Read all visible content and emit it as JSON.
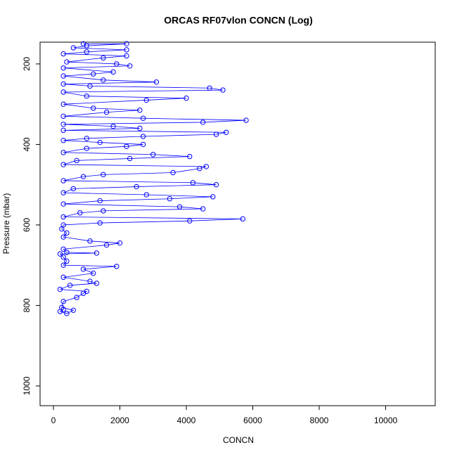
{
  "chart_data": {
    "type": "scatter",
    "title": "ORCAS RF07vlon CONCN (Log)",
    "x_label": "CONCN",
    "y_label": "Pressure (mbar)",
    "xlim": [
      -402,
      11492
    ],
    "ylim": [
      1049,
      146
    ],
    "xticks": [
      0,
      2000,
      4000,
      6000,
      8000,
      10000
    ],
    "yticks": [
      200,
      400,
      600,
      800,
      1000
    ],
    "color": "#0000ff",
    "connect": true,
    "x": [
      300,
      200,
      400,
      600,
      250,
      300,
      700,
      900,
      1000,
      200,
      500,
      1300,
      1100,
      300,
      1200,
      900,
      1900,
      300,
      400,
      300,
      200,
      1300,
      400,
      300,
      1600,
      2000,
      1100,
      300,
      400,
      250,
      300,
      1400,
      4100,
      5700,
      300,
      800,
      1500,
      4500,
      3800,
      300,
      1400,
      3500,
      4800,
      2800,
      300,
      600,
      2500,
      4900,
      4200,
      300,
      900,
      1500,
      3600,
      4400,
      4600,
      300,
      700,
      2300,
      4100,
      3000,
      300,
      1000,
      2200,
      2700,
      1400,
      300,
      1000,
      2700,
      4900,
      5200,
      300,
      2600,
      1800,
      300,
      4500,
      5800,
      2700,
      300,
      1600,
      2600,
      1200,
      300,
      2800,
      4000,
      1000,
      300,
      5100,
      4700,
      1100,
      300,
      3100,
      1500,
      300,
      1200,
      1800,
      300,
      2300,
      1900,
      400,
      1500,
      2200,
      300,
      1000,
      2200,
      600,
      1000,
      2200,
      900
    ],
    "y": [
      810,
      815,
      820,
      812,
      805,
      790,
      780,
      770,
      765,
      760,
      750,
      745,
      740,
      730,
      720,
      710,
      703,
      700,
      690,
      680,
      672,
      670,
      668,
      660,
      650,
      645,
      640,
      630,
      620,
      610,
      600,
      595,
      590,
      585,
      580,
      570,
      565,
      560,
      555,
      548,
      540,
      535,
      530,
      525,
      520,
      510,
      505,
      500,
      495,
      490,
      480,
      475,
      470,
      460,
      455,
      450,
      440,
      435,
      430,
      425,
      420,
      410,
      405,
      400,
      395,
      390,
      385,
      380,
      375,
      370,
      365,
      360,
      355,
      350,
      345,
      340,
      335,
      330,
      320,
      315,
      310,
      300,
      290,
      285,
      280,
      270,
      265,
      260,
      255,
      250,
      245,
      240,
      230,
      225,
      220,
      210,
      205,
      200,
      195,
      185,
      180,
      175,
      170,
      165,
      160,
      155,
      150,
      150
    ]
  }
}
